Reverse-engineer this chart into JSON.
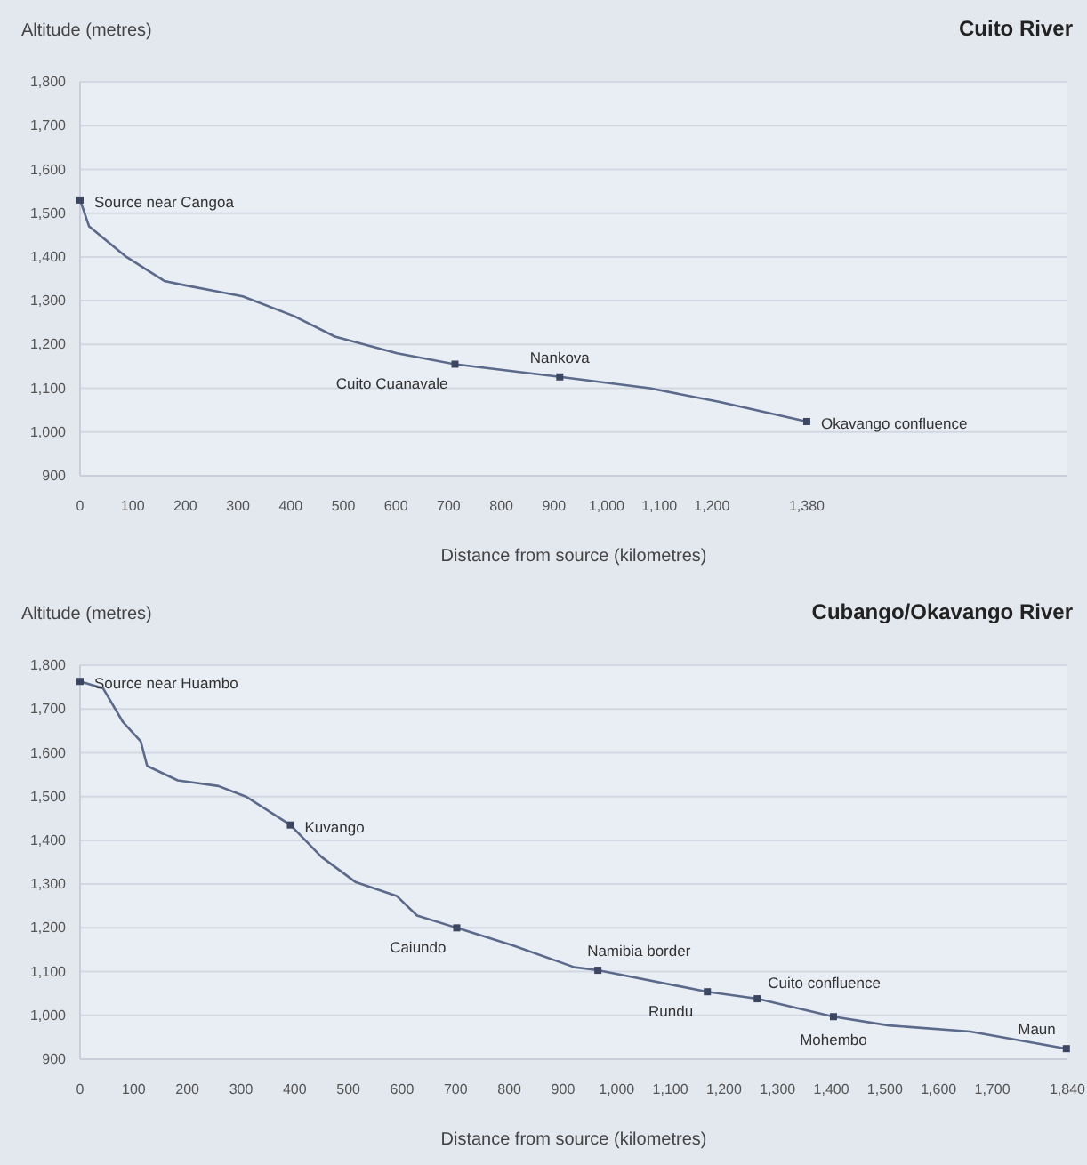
{
  "chart_data": [
    {
      "type": "line",
      "title": "Cuito River",
      "ylabel": "Altitude (metres)",
      "xlabel": "Distance from source (kilometres)",
      "series": [
        {
          "color": "#5b6a8a",
          "x": [
            0,
            17,
            88,
            160,
            200,
            309,
            406,
            484,
            602,
            712,
            911,
            1082,
            1213,
            1380
          ],
          "values": [
            1530,
            1470,
            1400,
            1345,
            1335,
            1310,
            1265,
            1218,
            1180,
            1155,
            1126,
            1100,
            1069,
            1024
          ]
        }
      ],
      "xlim": [
        0,
        1875
      ],
      "xticks": [
        0,
        100,
        200,
        300,
        400,
        500,
        600,
        700,
        800,
        900,
        {
          "value": 1000,
          "label": "1,000"
        },
        {
          "value": 1100,
          "label": "1,100"
        },
        {
          "value": 1200,
          "label": "1,200"
        },
        {
          "value": 1380,
          "label": "1,380"
        }
      ],
      "ylim": [
        900,
        1800
      ],
      "yticks": [
        900,
        {
          "value": 1000,
          "label": "1,000"
        },
        {
          "value": 1100,
          "label": "1,100"
        },
        {
          "value": 1200,
          "label": "1,200"
        },
        {
          "value": 1300,
          "label": "1,300"
        },
        {
          "value": 1400,
          "label": "1,400"
        },
        {
          "value": 1500,
          "label": "1,500"
        },
        {
          "value": 1600,
          "label": "1,600"
        },
        {
          "value": 1700,
          "label": "1,700"
        },
        {
          "value": 1800,
          "label": "1,800"
        }
      ],
      "grid": "y",
      "marker": "none",
      "line_style": "solid",
      "annotations": [
        {
          "text": "Source near Cangoa",
          "x": 0,
          "y": 1530
        },
        {
          "text": "Cuito Cuanavale",
          "x": 712,
          "y": 1155
        },
        {
          "text": "Nankova",
          "x": 911,
          "y": 1126
        },
        {
          "text": "Okavango confluence",
          "x": 1380,
          "y": 1024
        }
      ]
    },
    {
      "type": "line",
      "title": "Cubango/Okavango River",
      "ylabel": "Altitude (metres)",
      "xlabel": "Distance from source (kilometres)",
      "series": [
        {
          "color": "#5b6a8a",
          "x": [
            0,
            43,
            80,
            113,
            125,
            182,
            258,
            309,
            392,
            450,
            513,
            590,
            628,
            702,
            806,
            921,
            965,
            1169,
            1262,
            1404,
            1507,
            1659,
            1838
          ],
          "values": [
            1763,
            1747,
            1670,
            1626,
            1570,
            1537,
            1524,
            1500,
            1435,
            1362,
            1305,
            1273,
            1228,
            1200,
            1160,
            1110,
            1103,
            1054,
            1038,
            997,
            977,
            963,
            924
          ]
        }
      ],
      "xlim": [
        0,
        1840
      ],
      "xticks": [
        0,
        100,
        200,
        300,
        400,
        500,
        600,
        700,
        800,
        900,
        {
          "value": 1000,
          "label": "1,000"
        },
        {
          "value": 1100,
          "label": "1,100"
        },
        {
          "value": 1200,
          "label": "1,200"
        },
        {
          "value": 1300,
          "label": "1,300"
        },
        {
          "value": 1400,
          "label": "1,400"
        },
        {
          "value": 1500,
          "label": "1,500"
        },
        {
          "value": 1600,
          "label": "1,600"
        },
        {
          "value": 1700,
          "label": "1,700"
        },
        {
          "value": 1840,
          "label": "1,840"
        }
      ],
      "ylim": [
        900,
        1800
      ],
      "yticks": [
        900,
        {
          "value": 1000,
          "label": "1,000"
        },
        {
          "value": 1100,
          "label": "1,100"
        },
        {
          "value": 1200,
          "label": "1,200"
        },
        {
          "value": 1300,
          "label": "1,300"
        },
        {
          "value": 1400,
          "label": "1,400"
        },
        {
          "value": 1500,
          "label": "1,500"
        },
        {
          "value": 1600,
          "label": "1,600"
        },
        {
          "value": 1700,
          "label": "1,700"
        },
        {
          "value": 1800,
          "label": "1,800"
        }
      ],
      "grid": "y",
      "marker": "none",
      "line_style": "solid",
      "annotations": [
        {
          "text": "Source near Huambo",
          "x": 0,
          "y": 1763
        },
        {
          "text": "Kuvango",
          "x": 392,
          "y": 1435
        },
        {
          "text": "Caiundo",
          "x": 702,
          "y": 1200
        },
        {
          "text": "Namibia border",
          "x": 965,
          "y": 1103
        },
        {
          "text": "Rundu",
          "x": 1169,
          "y": 1054
        },
        {
          "text": "Cuito confluence",
          "x": 1262,
          "y": 1038
        },
        {
          "text": "Mohembo",
          "x": 1404,
          "y": 997
        },
        {
          "text": "Maun",
          "x": 1838,
          "y": 924
        }
      ]
    }
  ]
}
